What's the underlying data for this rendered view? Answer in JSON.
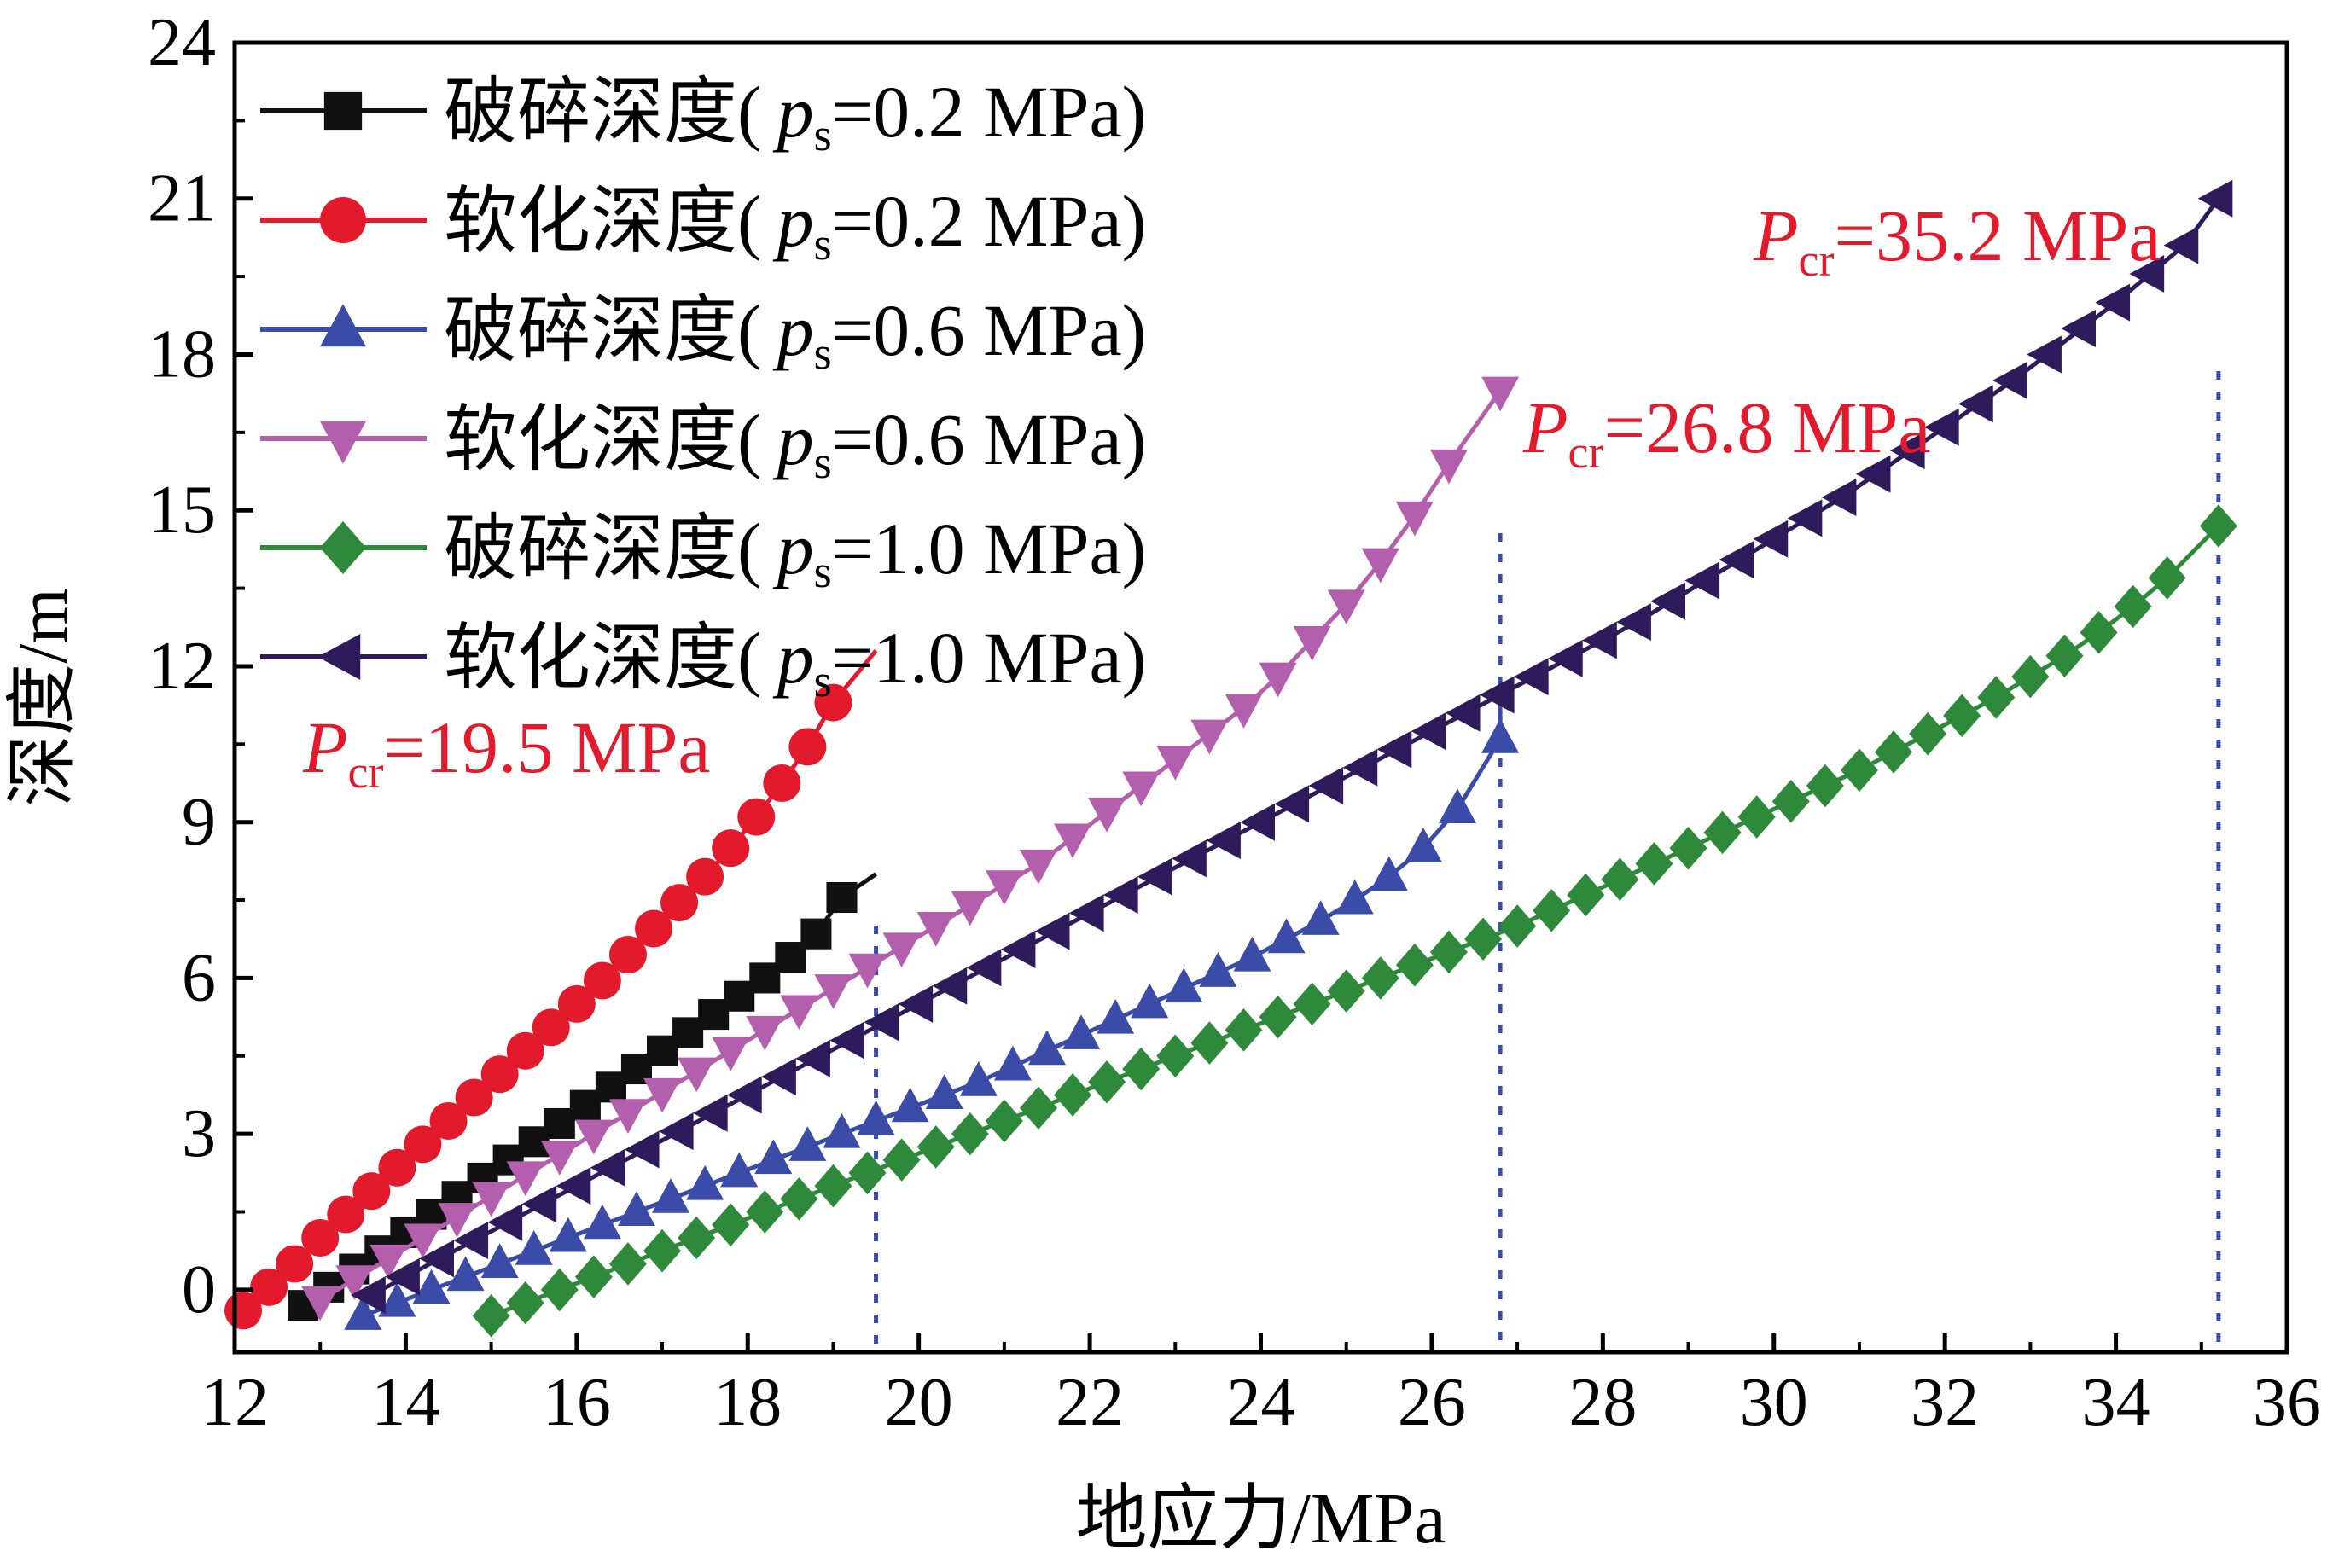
{
  "chart_data": {
    "type": "line",
    "title": "",
    "xlabel": "地应力/MPa",
    "ylabel": "深度/m",
    "xlim": [
      12,
      36
    ],
    "ylim": [
      -1.2,
      24
    ],
    "xticks": [
      "12",
      "14",
      "16",
      "18",
      "20",
      "22",
      "24",
      "26",
      "28",
      "30",
      "32",
      "34",
      "36"
    ],
    "yticks": [
      "0",
      "3",
      "6",
      "9",
      "12",
      "15",
      "18",
      "21",
      "24"
    ],
    "legend_position": "top-left",
    "grid": false,
    "series": [
      {
        "name_prefix": "破碎深度(",
        "ps_label": "0.2 MPa",
        "marker": "square",
        "color": "#111111",
        "x": [
          12.8,
          13.1,
          13.4,
          13.7,
          14.0,
          14.3,
          14.6,
          14.9,
          15.2,
          15.5,
          15.8,
          16.1,
          16.4,
          16.7,
          17.0,
          17.3,
          17.6,
          17.9,
          18.2,
          18.5,
          18.8,
          19.1
        ],
        "y": [
          -0.3,
          0.05,
          0.4,
          0.75,
          1.1,
          1.45,
          1.8,
          2.15,
          2.5,
          2.85,
          3.2,
          3.55,
          3.9,
          4.25,
          4.6,
          4.95,
          5.3,
          5.65,
          6.0,
          6.4,
          6.85,
          7.55
        ],
        "tail": [
          19.5,
          8.0
        ]
      },
      {
        "name_prefix": "软化深度(",
        "ps_label": "0.2 MPa",
        "marker": "circle",
        "color": "#e31a2c",
        "x": [
          12.1,
          12.4,
          12.7,
          13.0,
          13.3,
          13.6,
          13.9,
          14.2,
          14.5,
          14.8,
          15.1,
          15.4,
          15.7,
          16.0,
          16.3,
          16.6,
          16.9,
          17.2,
          17.5,
          17.8,
          18.1,
          18.4,
          18.7,
          19.0
        ],
        "y": [
          -0.4,
          0.05,
          0.5,
          1.0,
          1.45,
          1.9,
          2.35,
          2.8,
          3.25,
          3.7,
          4.15,
          4.6,
          5.05,
          5.5,
          5.95,
          6.45,
          6.95,
          7.45,
          7.95,
          8.5,
          9.1,
          9.75,
          10.45,
          11.3
        ],
        "tail": [
          19.5,
          12.3
        ]
      },
      {
        "name_prefix": "破碎深度(",
        "ps_label": "0.6 MPa",
        "marker": "triangle-up",
        "color": "#3b4ba8",
        "x": [
          13.5,
          13.9,
          14.3,
          14.7,
          15.1,
          15.5,
          15.9,
          16.3,
          16.7,
          17.1,
          17.5,
          17.9,
          18.3,
          18.7,
          19.1,
          19.5,
          19.9,
          20.3,
          20.7,
          21.1,
          21.5,
          21.9,
          22.3,
          22.7,
          23.1,
          23.5,
          23.9,
          24.3,
          24.7,
          25.1,
          25.5,
          25.9,
          26.3,
          26.8
        ],
        "y": [
          -0.5,
          -0.25,
          0.0,
          0.25,
          0.5,
          0.75,
          1.0,
          1.25,
          1.5,
          1.75,
          2.0,
          2.25,
          2.5,
          2.75,
          3.0,
          3.25,
          3.5,
          3.75,
          4.0,
          4.3,
          4.6,
          4.9,
          5.2,
          5.5,
          5.8,
          6.1,
          6.4,
          6.75,
          7.1,
          7.5,
          7.95,
          8.5,
          9.25,
          10.6
        ],
        "tail": [
          26.8,
          11.6
        ]
      },
      {
        "name_prefix": "软化深度(",
        "ps_label": "0.6 MPa",
        "marker": "triangle-down",
        "color": "#b45fad",
        "x": [
          13.0,
          13.4,
          13.8,
          14.2,
          14.6,
          15.0,
          15.4,
          15.8,
          16.2,
          16.6,
          17.0,
          17.4,
          17.8,
          18.2,
          18.6,
          19.0,
          19.4,
          19.8,
          20.2,
          20.6,
          21.0,
          21.4,
          21.8,
          22.2,
          22.6,
          23.0,
          23.4,
          23.8,
          24.2,
          24.6,
          25.0,
          25.4,
          25.8,
          26.2,
          26.8
        ],
        "y": [
          -0.2,
          0.2,
          0.6,
          1.0,
          1.4,
          1.8,
          2.2,
          2.6,
          3.0,
          3.4,
          3.8,
          4.2,
          4.6,
          5.0,
          5.4,
          5.8,
          6.2,
          6.6,
          7.0,
          7.4,
          7.8,
          8.2,
          8.7,
          9.2,
          9.7,
          10.2,
          10.7,
          11.2,
          11.8,
          12.5,
          13.2,
          14.0,
          14.9,
          15.9,
          17.3
        ],
        "tail": [
          26.9,
          17.5
        ]
      },
      {
        "name_prefix": "破碎深度(",
        "ps_label": "1.0 MPa",
        "marker": "diamond",
        "color": "#2e8a3a",
        "x": [
          15.0,
          15.4,
          15.8,
          16.2,
          16.6,
          17.0,
          17.4,
          17.8,
          18.2,
          18.6,
          19.0,
          19.4,
          19.8,
          20.2,
          20.6,
          21.0,
          21.4,
          21.8,
          22.2,
          22.6,
          23.0,
          23.4,
          23.8,
          24.2,
          24.6,
          25.0,
          25.4,
          25.8,
          26.2,
          26.6,
          27.0,
          27.4,
          27.8,
          28.2,
          28.6,
          29.0,
          29.4,
          29.8,
          30.2,
          30.6,
          31.0,
          31.4,
          31.8,
          32.2,
          32.6,
          33.0,
          33.4,
          33.8,
          34.2,
          34.6,
          35.2
        ],
        "y": [
          -0.5,
          -0.25,
          0.0,
          0.25,
          0.5,
          0.75,
          1.0,
          1.25,
          1.5,
          1.75,
          2.0,
          2.25,
          2.5,
          2.75,
          3.0,
          3.25,
          3.5,
          3.75,
          4.0,
          4.25,
          4.5,
          4.75,
          5.0,
          5.25,
          5.5,
          5.75,
          6.0,
          6.25,
          6.5,
          6.75,
          7.0,
          7.3,
          7.6,
          7.9,
          8.2,
          8.5,
          8.8,
          9.1,
          9.4,
          9.7,
          10.0,
          10.35,
          10.7,
          11.05,
          11.4,
          11.8,
          12.2,
          12.65,
          13.15,
          13.7,
          14.7
        ],
        "tail": [
          35.2,
          14.9
        ]
      },
      {
        "name_prefix": "软化深度(",
        "ps_label": "1.0 MPa",
        "marker": "triangle-left",
        "color": "#2e1b5c",
        "x": [
          13.6,
          14.0,
          14.4,
          14.8,
          15.2,
          15.6,
          16.0,
          16.4,
          16.8,
          17.2,
          17.6,
          18.0,
          18.4,
          18.8,
          19.2,
          19.6,
          20.0,
          20.4,
          20.8,
          21.2,
          21.6,
          22.0,
          22.4,
          22.8,
          23.2,
          23.6,
          24.0,
          24.4,
          24.8,
          25.2,
          25.6,
          26.0,
          26.4,
          26.8,
          27.2,
          27.6,
          28.0,
          28.4,
          28.8,
          29.2,
          29.6,
          30.0,
          30.4,
          30.8,
          31.2,
          31.6,
          32.0,
          32.4,
          32.8,
          33.2,
          33.6,
          34.0,
          34.4,
          34.8,
          35.2
        ],
        "y": [
          -0.1,
          0.25,
          0.6,
          0.95,
          1.3,
          1.65,
          2.0,
          2.35,
          2.7,
          3.05,
          3.4,
          3.75,
          4.1,
          4.45,
          4.8,
          5.15,
          5.5,
          5.85,
          6.2,
          6.55,
          6.9,
          7.25,
          7.6,
          7.95,
          8.3,
          8.65,
          9.0,
          9.35,
          9.7,
          10.05,
          10.4,
          10.75,
          11.1,
          11.45,
          11.8,
          12.15,
          12.5,
          12.85,
          13.25,
          13.65,
          14.05,
          14.45,
          14.85,
          15.25,
          15.7,
          16.15,
          16.6,
          17.05,
          17.5,
          18.0,
          18.5,
          19.0,
          19.55,
          20.1,
          21.0
        ],
        "tail": [
          35.2,
          21.2
        ]
      }
    ],
    "annotations": [
      {
        "label": "19.5 MPa",
        "x": 19.5
      },
      {
        "label": "26.8 MPa",
        "x": 26.8
      },
      {
        "label": "35.2 MPa",
        "x": 35.2
      }
    ],
    "annotation_symbol": "P",
    "annotation_subscript": "cr",
    "legend_symbol": "p",
    "legend_subscript": "s",
    "colors": {
      "axis": "#000000",
      "annotation": "#e31a2c",
      "vline": "#3b4ba8"
    }
  }
}
